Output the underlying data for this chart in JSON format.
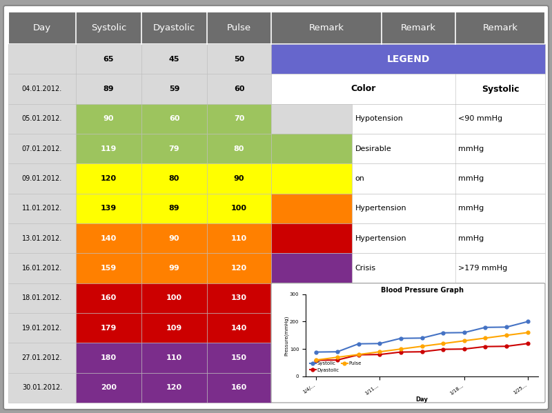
{
  "header_labels": [
    "Day",
    "Systolic",
    "Dyastolic",
    "Pulse",
    "Remark",
    "Remark",
    "Remark"
  ],
  "header_bg": "#6d6d6d",
  "header_text_color": "#ffffff",
  "rows": [
    {
      "day": "",
      "systolic": 65,
      "dyastolic": 45,
      "pulse": 50,
      "row_color": "#d9d9d9"
    },
    {
      "day": "04.01.2012.",
      "systolic": 89,
      "dyastolic": 59,
      "pulse": 60,
      "row_color": "#d9d9d9"
    },
    {
      "day": "05.01.2012.",
      "systolic": 90,
      "dyastolic": 60,
      "pulse": 70,
      "row_color": "#9dc45e"
    },
    {
      "day": "07.01.2012.",
      "systolic": 119,
      "dyastolic": 79,
      "pulse": 80,
      "row_color": "#9dc45e"
    },
    {
      "day": "09.01.2012.",
      "systolic": 120,
      "dyastolic": 80,
      "pulse": 90,
      "row_color": "#ffff00"
    },
    {
      "day": "11.01.2012.",
      "systolic": 139,
      "dyastolic": 89,
      "pulse": 100,
      "row_color": "#ffff00"
    },
    {
      "day": "13.01.2012.",
      "systolic": 140,
      "dyastolic": 90,
      "pulse": 110,
      "row_color": "#ff8000"
    },
    {
      "day": "16.01.2012.",
      "systolic": 159,
      "dyastolic": 99,
      "pulse": 120,
      "row_color": "#ff8000"
    },
    {
      "day": "18.01.2012.",
      "systolic": 160,
      "dyastolic": 100,
      "pulse": 130,
      "row_color": "#cc0000"
    },
    {
      "day": "19.01.2012.",
      "systolic": 179,
      "dyastolic": 109,
      "pulse": 140,
      "row_color": "#cc0000"
    },
    {
      "day": "27.01.2012.",
      "systolic": 180,
      "dyastolic": 110,
      "pulse": 150,
      "row_color": "#7b2d8b"
    },
    {
      "day": "30.01.2012.",
      "systolic": 200,
      "dyastolic": 120,
      "pulse": 160,
      "row_color": "#7b2d8b"
    }
  ],
  "legend_header_color": "#6666cc",
  "legend_header_text": "LEGEND",
  "legend_colors": [
    "#d9d9d9",
    "#9dc45e",
    "#ffff00",
    "#ff8000",
    "#cc0000",
    "#7b2d8b"
  ],
  "legend_labels": [
    "Hypotension",
    "Desirable",
    "on",
    "Hypertension",
    "Hypertension",
    "Crisis"
  ],
  "legend_systolic": [
    "<90 mmHg",
    "mmHg",
    "mmHg",
    "mmHg",
    "mmHg",
    ">179 mmHg"
  ],
  "graph_title": "Blood Pressure Graph",
  "graph_xlabel": "Day",
  "graph_ylabel": "Pressure(mmHg)",
  "graph_days": [
    "1/4/...",
    "1/11...",
    "1/18...",
    "1/25..."
  ],
  "systolic_values": [
    89,
    90,
    119,
    120,
    139,
    140,
    159,
    160,
    179,
    180,
    200
  ],
  "dyastolic_values": [
    59,
    60,
    79,
    80,
    89,
    90,
    99,
    100,
    109,
    110,
    120
  ],
  "pulse_values": [
    60,
    70,
    80,
    90,
    100,
    110,
    120,
    130,
    140,
    150,
    160
  ],
  "line_colors": [
    "#4472c4",
    "#cc0000",
    "#ffa500"
  ],
  "bg_color": "#a0a0a0"
}
